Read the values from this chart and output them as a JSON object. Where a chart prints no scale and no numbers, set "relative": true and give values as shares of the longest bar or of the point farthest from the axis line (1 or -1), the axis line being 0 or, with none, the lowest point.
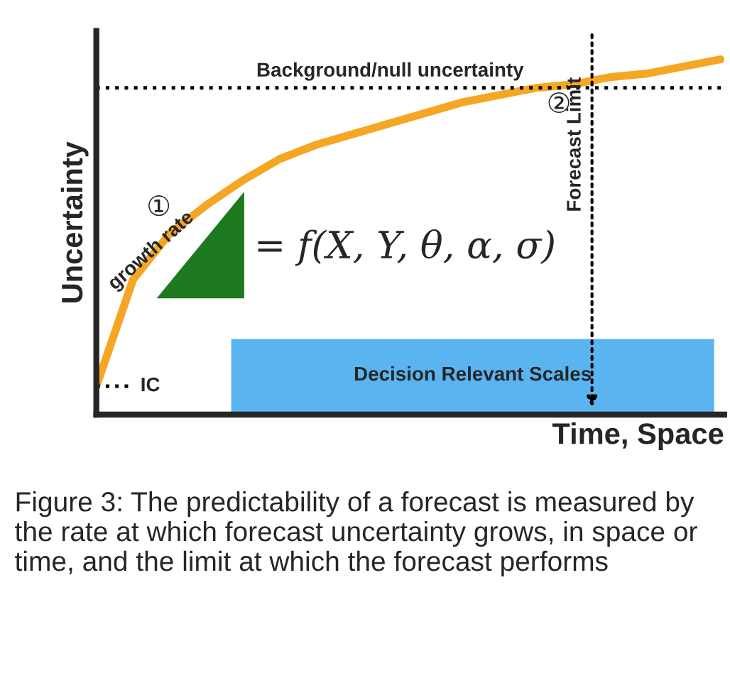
{
  "chart_data": {
    "type": "line",
    "relative": true,
    "xlabel": "Time, Space",
    "ylabel": "Uncertainty",
    "categories": [
      null,
      null,
      null,
      null,
      null,
      null,
      null,
      null,
      null,
      null,
      null,
      null,
      null,
      null,
      null,
      null,
      null,
      null
    ],
    "series": [
      {
        "color": "#f5a623",
        "values": [
          0.08,
          0.38,
          0.51,
          0.59,
          0.66,
          0.72,
          0.76,
          0.79,
          0.82,
          0.85,
          0.88,
          0.9,
          0.92,
          0.93,
          0.95,
          0.96,
          0.98,
          1.0
        ]
      }
    ],
    "ref_lines": [
      {
        "axis": "y",
        "value": 0.92,
        "label": "Background/null uncertainty",
        "line_style": "dotted",
        "color": "#000000"
      },
      {
        "axis": "y",
        "value": 0.08,
        "label": "IC",
        "line_style": "dotted",
        "color": "#000000"
      }
    ],
    "annotations": [
      "①",
      "growth rate",
      "= f(X, Y, θ, α, σ)",
      "②",
      "Figure 3: The predictability of a forecast is measured by the rate at which forecast uncertainty grows, in space or time, and the limit at which the forecast performs",
      "Decision Relevant Scales",
      "Forecast Limit"
    ],
    "line_style": "solid",
    "marker": "none"
  }
}
